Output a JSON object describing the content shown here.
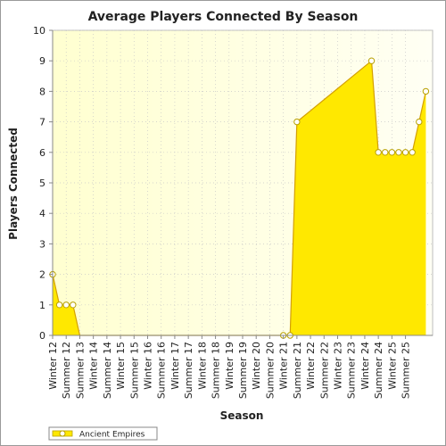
{
  "chart_data": {
    "type": "area",
    "title": "Average Players Connected By Season",
    "xlabel": "Season",
    "ylabel": "Players Connected",
    "ylim": [
      0,
      10
    ],
    "yticks": [
      0,
      1,
      2,
      3,
      4,
      5,
      6,
      7,
      8,
      9,
      10
    ],
    "grid": true,
    "legend_position": "bottom-left",
    "x_tick_labels": [
      "Winter 12",
      "Summer 12",
      "Summer 13",
      "Winter 14",
      "Summer 14",
      "Winter 15",
      "Summer 15",
      "Winter 16",
      "Summer 16",
      "Winter 17",
      "Summer 17",
      "Winter 18",
      "Summer 18",
      "Winter 19",
      "Summer 19",
      "Winter 20",
      "Summer 20",
      "Winter 21",
      "Summer 21",
      "Winter 22",
      "Summer 22",
      "Winter 23",
      "Summer 23",
      "Winter 24",
      "Summer 24",
      "Winter 25",
      "Summer 25"
    ],
    "x_tick_positions": [
      0,
      2,
      4,
      6,
      8,
      10,
      12,
      14,
      16,
      18,
      20,
      22,
      24,
      26,
      28,
      30,
      32,
      34,
      36,
      38,
      40,
      42,
      44,
      46,
      48,
      50,
      52
    ],
    "x_range": [
      0,
      56
    ],
    "series": [
      {
        "name": "Ancient Empires",
        "color": "#FFE800",
        "points": [
          [
            0,
            2
          ],
          [
            1,
            1
          ],
          [
            2,
            1
          ],
          [
            3,
            1
          ],
          [
            4,
            0
          ],
          [
            34,
            0
          ],
          [
            35,
            0
          ],
          [
            36,
            7
          ],
          [
            47,
            9
          ],
          [
            48,
            6
          ],
          [
            49,
            6
          ],
          [
            50,
            6
          ],
          [
            51,
            6
          ],
          [
            52,
            6
          ],
          [
            53,
            6
          ],
          [
            54,
            7
          ],
          [
            55,
            8
          ]
        ],
        "markers": [
          [
            0,
            2
          ],
          [
            1,
            1
          ],
          [
            2,
            1
          ],
          [
            3,
            1
          ],
          [
            34,
            0
          ],
          [
            35,
            0
          ],
          [
            36,
            7
          ],
          [
            47,
            9
          ],
          [
            48,
            6
          ],
          [
            49,
            6
          ],
          [
            50,
            6
          ],
          [
            51,
            6
          ],
          [
            52,
            6
          ],
          [
            53,
            6
          ],
          [
            54,
            7
          ],
          [
            55,
            8
          ]
        ]
      }
    ]
  },
  "legend": {
    "label": "Ancient Empires"
  }
}
